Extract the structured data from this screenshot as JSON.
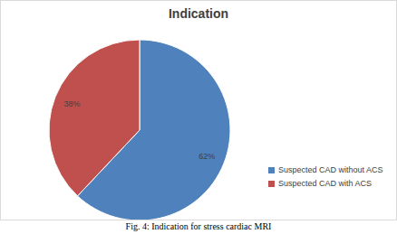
{
  "chart_data": {
    "type": "pie",
    "title": "Indication",
    "caption": "Fig. 4: Indication for stress cardiac MRI",
    "categories": [
      "Suspected CAD without ACS",
      "Suspected CAD with ACS"
    ],
    "values": [
      62,
      38
    ],
    "value_labels": [
      "62%",
      "38%"
    ],
    "colors": [
      "#4f81bd",
      "#c0504d"
    ],
    "data_labels": true,
    "legend": "right"
  }
}
